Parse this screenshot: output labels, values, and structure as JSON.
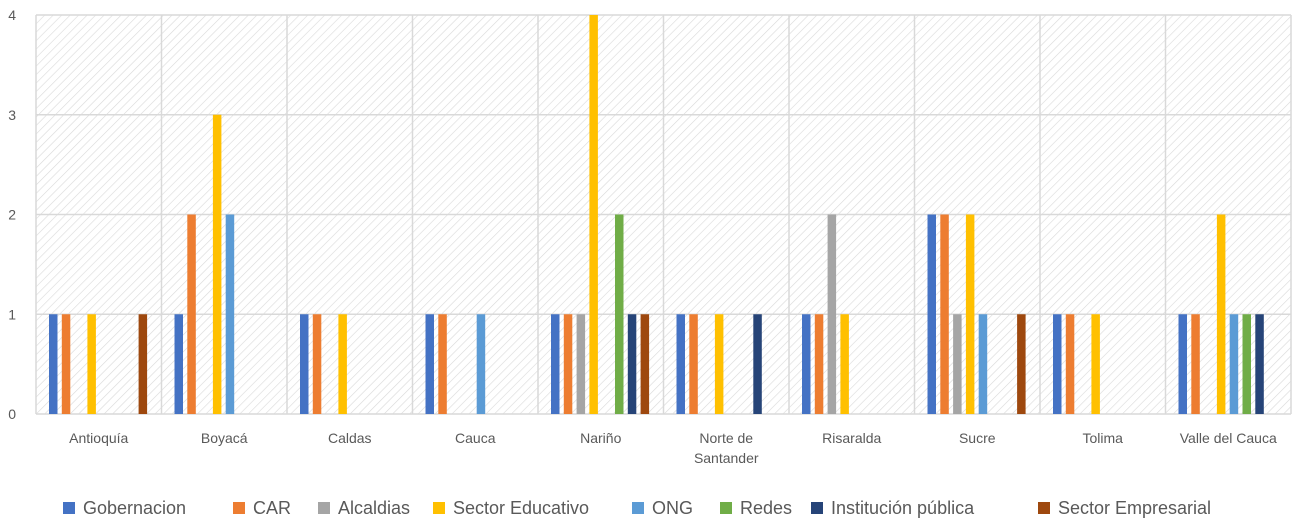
{
  "chart_data": {
    "type": "bar",
    "title": "",
    "xlabel": "",
    "ylabel": "",
    "ylim": [
      0,
      4
    ],
    "yticks": [
      0,
      1,
      2,
      3,
      4
    ],
    "grid": true,
    "legend_position": "bottom",
    "categories": [
      [
        "Antioquía"
      ],
      [
        "Boyacá"
      ],
      [
        "Caldas"
      ],
      [
        "Cauca"
      ],
      [
        "Nariño"
      ],
      [
        "Norte de",
        "Santander"
      ],
      [
        "Risaralda"
      ],
      [
        "Sucre"
      ],
      [
        "Tolima"
      ],
      [
        "Valle del Cauca"
      ]
    ],
    "series": [
      {
        "name": "Gobernacion",
        "color": "#4472C4",
        "values": [
          1,
          1,
          1,
          1,
          1,
          1,
          1,
          2,
          1,
          1
        ]
      },
      {
        "name": "CAR",
        "color": "#ED7D31",
        "values": [
          1,
          2,
          1,
          1,
          1,
          1,
          1,
          2,
          1,
          1
        ]
      },
      {
        "name": "Alcaldias",
        "color": "#A5A5A5",
        "values": [
          0,
          0,
          0,
          0,
          1,
          0,
          2,
          1,
          0,
          0
        ]
      },
      {
        "name": "Sector Educativo",
        "color": "#FFC000",
        "values": [
          1,
          3,
          1,
          0,
          4,
          1,
          1,
          2,
          1,
          2
        ]
      },
      {
        "name": "ONG",
        "color": "#5B9BD5",
        "values": [
          0,
          2,
          0,
          1,
          0,
          0,
          0,
          1,
          0,
          1
        ]
      },
      {
        "name": "Redes",
        "color": "#70AD47",
        "values": [
          0,
          0,
          0,
          0,
          2,
          0,
          0,
          0,
          0,
          1
        ]
      },
      {
        "name": "Institución pública",
        "color": "#264478",
        "values": [
          0,
          0,
          0,
          0,
          1,
          1,
          0,
          0,
          0,
          1
        ]
      },
      {
        "name": "Sector Empresarial",
        "color": "#9E480E",
        "values": [
          1,
          0,
          0,
          0,
          1,
          0,
          0,
          1,
          0,
          0
        ]
      }
    ]
  }
}
